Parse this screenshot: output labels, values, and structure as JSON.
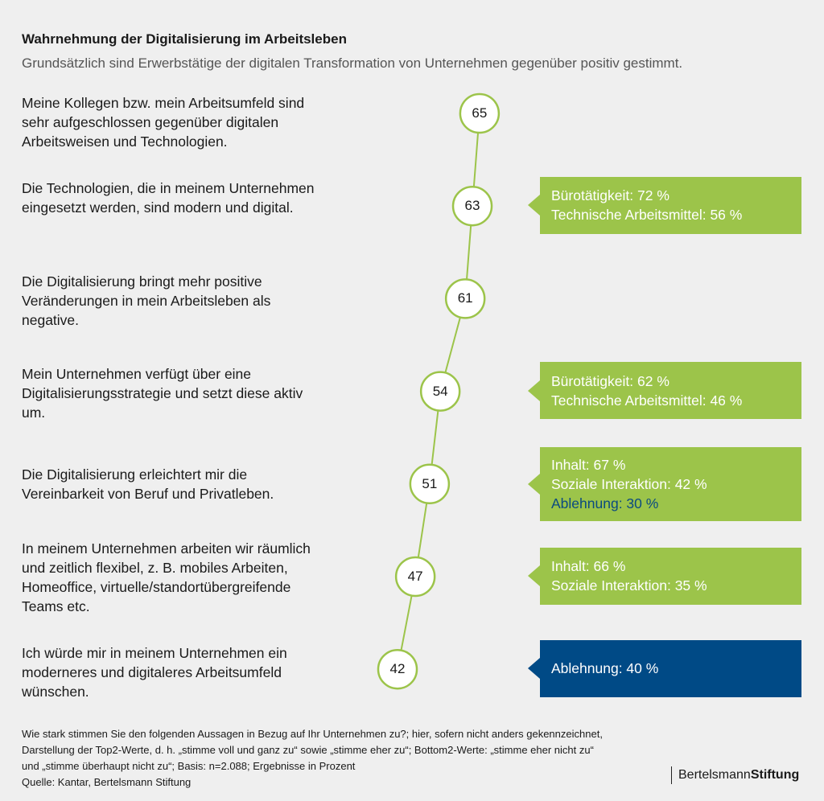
{
  "title": "Wahrnehmung der Digitalisierung im Arbeitsleben",
  "subtitle": "Grundsätzlich sind Erwerbstätige der digitalen Transformation von Unternehmen gegenüber positiv gestimmt.",
  "colors": {
    "green": "#9cc44a",
    "blue": "#004a86",
    "line": "#9cc44a",
    "background": "#efefef"
  },
  "chart_data": {
    "type": "line",
    "unit": "Prozent",
    "items": [
      {
        "statement": "Meine Kollegen bzw. mein Arbeitsumfeld sind sehr aufgeschlossen gegenüber digitalen Arbeitsweisen und Technologien.",
        "value": 65,
        "box": null
      },
      {
        "statement": "Die Technologien, die in meinem Unternehmen eingesetzt werden, sind modern und digital.",
        "value": 63,
        "box": {
          "color": "green",
          "lines": [
            {
              "text": "Bürotätigkeit: 72 %"
            },
            {
              "text": "Technische Arbeitsmittel: 56 %"
            }
          ]
        }
      },
      {
        "statement": "Die Digitalisierung bringt mehr positive Veränderungen in mein Arbeitsleben als negative.",
        "value": 61,
        "box": null
      },
      {
        "statement": "Mein Unternehmen verfügt über eine Digitalisierungsstrategie und setzt diese aktiv um.",
        "value": 54,
        "box": {
          "color": "green",
          "lines": [
            {
              "text": "Bürotätigkeit: 62 %"
            },
            {
              "text": "Technische Arbeitsmittel: 46 %"
            }
          ]
        }
      },
      {
        "statement": "Die Digitalisierung erleichtert mir die Vereinbarkeit von Beruf und Privatleben.",
        "value": 51,
        "box": {
          "color": "green",
          "lines": [
            {
              "text": "Inhalt: 67 %"
            },
            {
              "text": "Soziale Interaktion: 42 %"
            },
            {
              "text": "Ablehnung: 30 %",
              "dark": true
            }
          ]
        }
      },
      {
        "statement": "In meinem Unternehmen arbeiten wir räumlich und zeitlich flexibel, z. B. mobiles Arbeiten, Homeoffice, virtuelle/standortübergreifende Teams etc.",
        "value": 47,
        "box": {
          "color": "green",
          "lines": [
            {
              "text": "Inhalt: 66 %"
            },
            {
              "text": "Soziale Interaktion: 35 %"
            }
          ]
        }
      },
      {
        "statement": "Ich würde mir in meinem Unternehmen ein moderneres und digitaleres Arbeitsumfeld wünschen.",
        "value": 42,
        "box": {
          "color": "blue",
          "lines": [
            {
              "text": "Ablehnung: 40 %"
            }
          ]
        }
      }
    ]
  },
  "footnote": [
    "Wie stark stimmen Sie den folgenden Aussagen in Bezug auf Ihr Unternehmen zu?; hier, sofern nicht anders gekennzeichnet,",
    "Darstellung der Top2-Werte, d. h. „stimme voll und ganz zu“ sowie „stimme eher zu“; Bottom2-Werte: „stimme eher nicht zu“",
    "und „stimme überhaupt nicht zu“; Basis: n=2.088; Ergebnisse in Prozent",
    "Quelle: Kantar, Bertelsmann Stiftung"
  ],
  "logo": {
    "part1": "Bertelsmann",
    "part2": "Stiftung"
  }
}
